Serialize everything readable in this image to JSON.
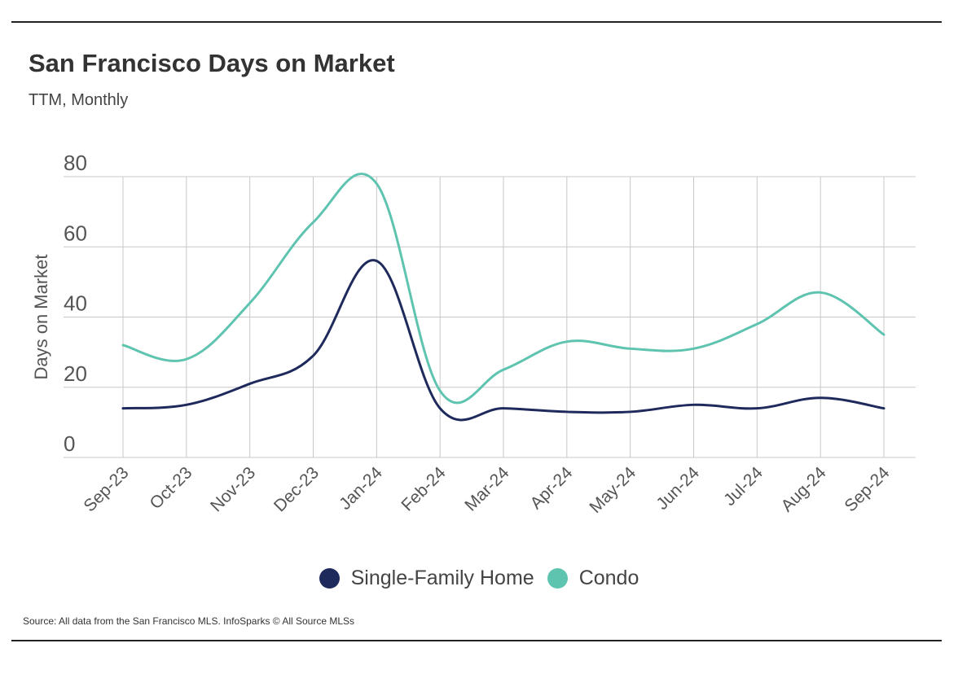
{
  "header": {
    "title": "San Francisco Days on Market",
    "subtitle": "TTM, Monthly"
  },
  "footer": {
    "source": "Source:  All data from the San Francisco MLS. InfoSparks © All Source MLSs"
  },
  "colors": {
    "single_family": "#1f2a5c",
    "condo": "#5ec4b0",
    "grid": "#c8c8c8"
  },
  "chart_data": {
    "type": "line",
    "title": "San Francisco Days on Market",
    "subtitle": "TTM, Monthly",
    "xlabel": "",
    "ylabel": "Days on Market",
    "ylim": [
      0,
      80
    ],
    "yticks": [
      0,
      20,
      40,
      60,
      80
    ],
    "grid": true,
    "legend_position": "bottom",
    "categories": [
      "Sep-23",
      "Oct-23",
      "Nov-23",
      "Dec-23",
      "Jan-24",
      "Feb-24",
      "Mar-24",
      "Apr-24",
      "May-24",
      "Jun-24",
      "Jul-24",
      "Aug-24",
      "Sep-24"
    ],
    "series": [
      {
        "name": "Single-Family Home",
        "color": "#1f2a5c",
        "values": [
          14,
          15,
          21,
          29,
          56,
          14,
          14,
          13,
          13,
          15,
          14,
          17,
          14
        ]
      },
      {
        "name": "Condo",
        "color": "#5ec4b0",
        "values": [
          32,
          28,
          44,
          67,
          78,
          19,
          25,
          33,
          31,
          31,
          38,
          47,
          35
        ]
      }
    ]
  }
}
